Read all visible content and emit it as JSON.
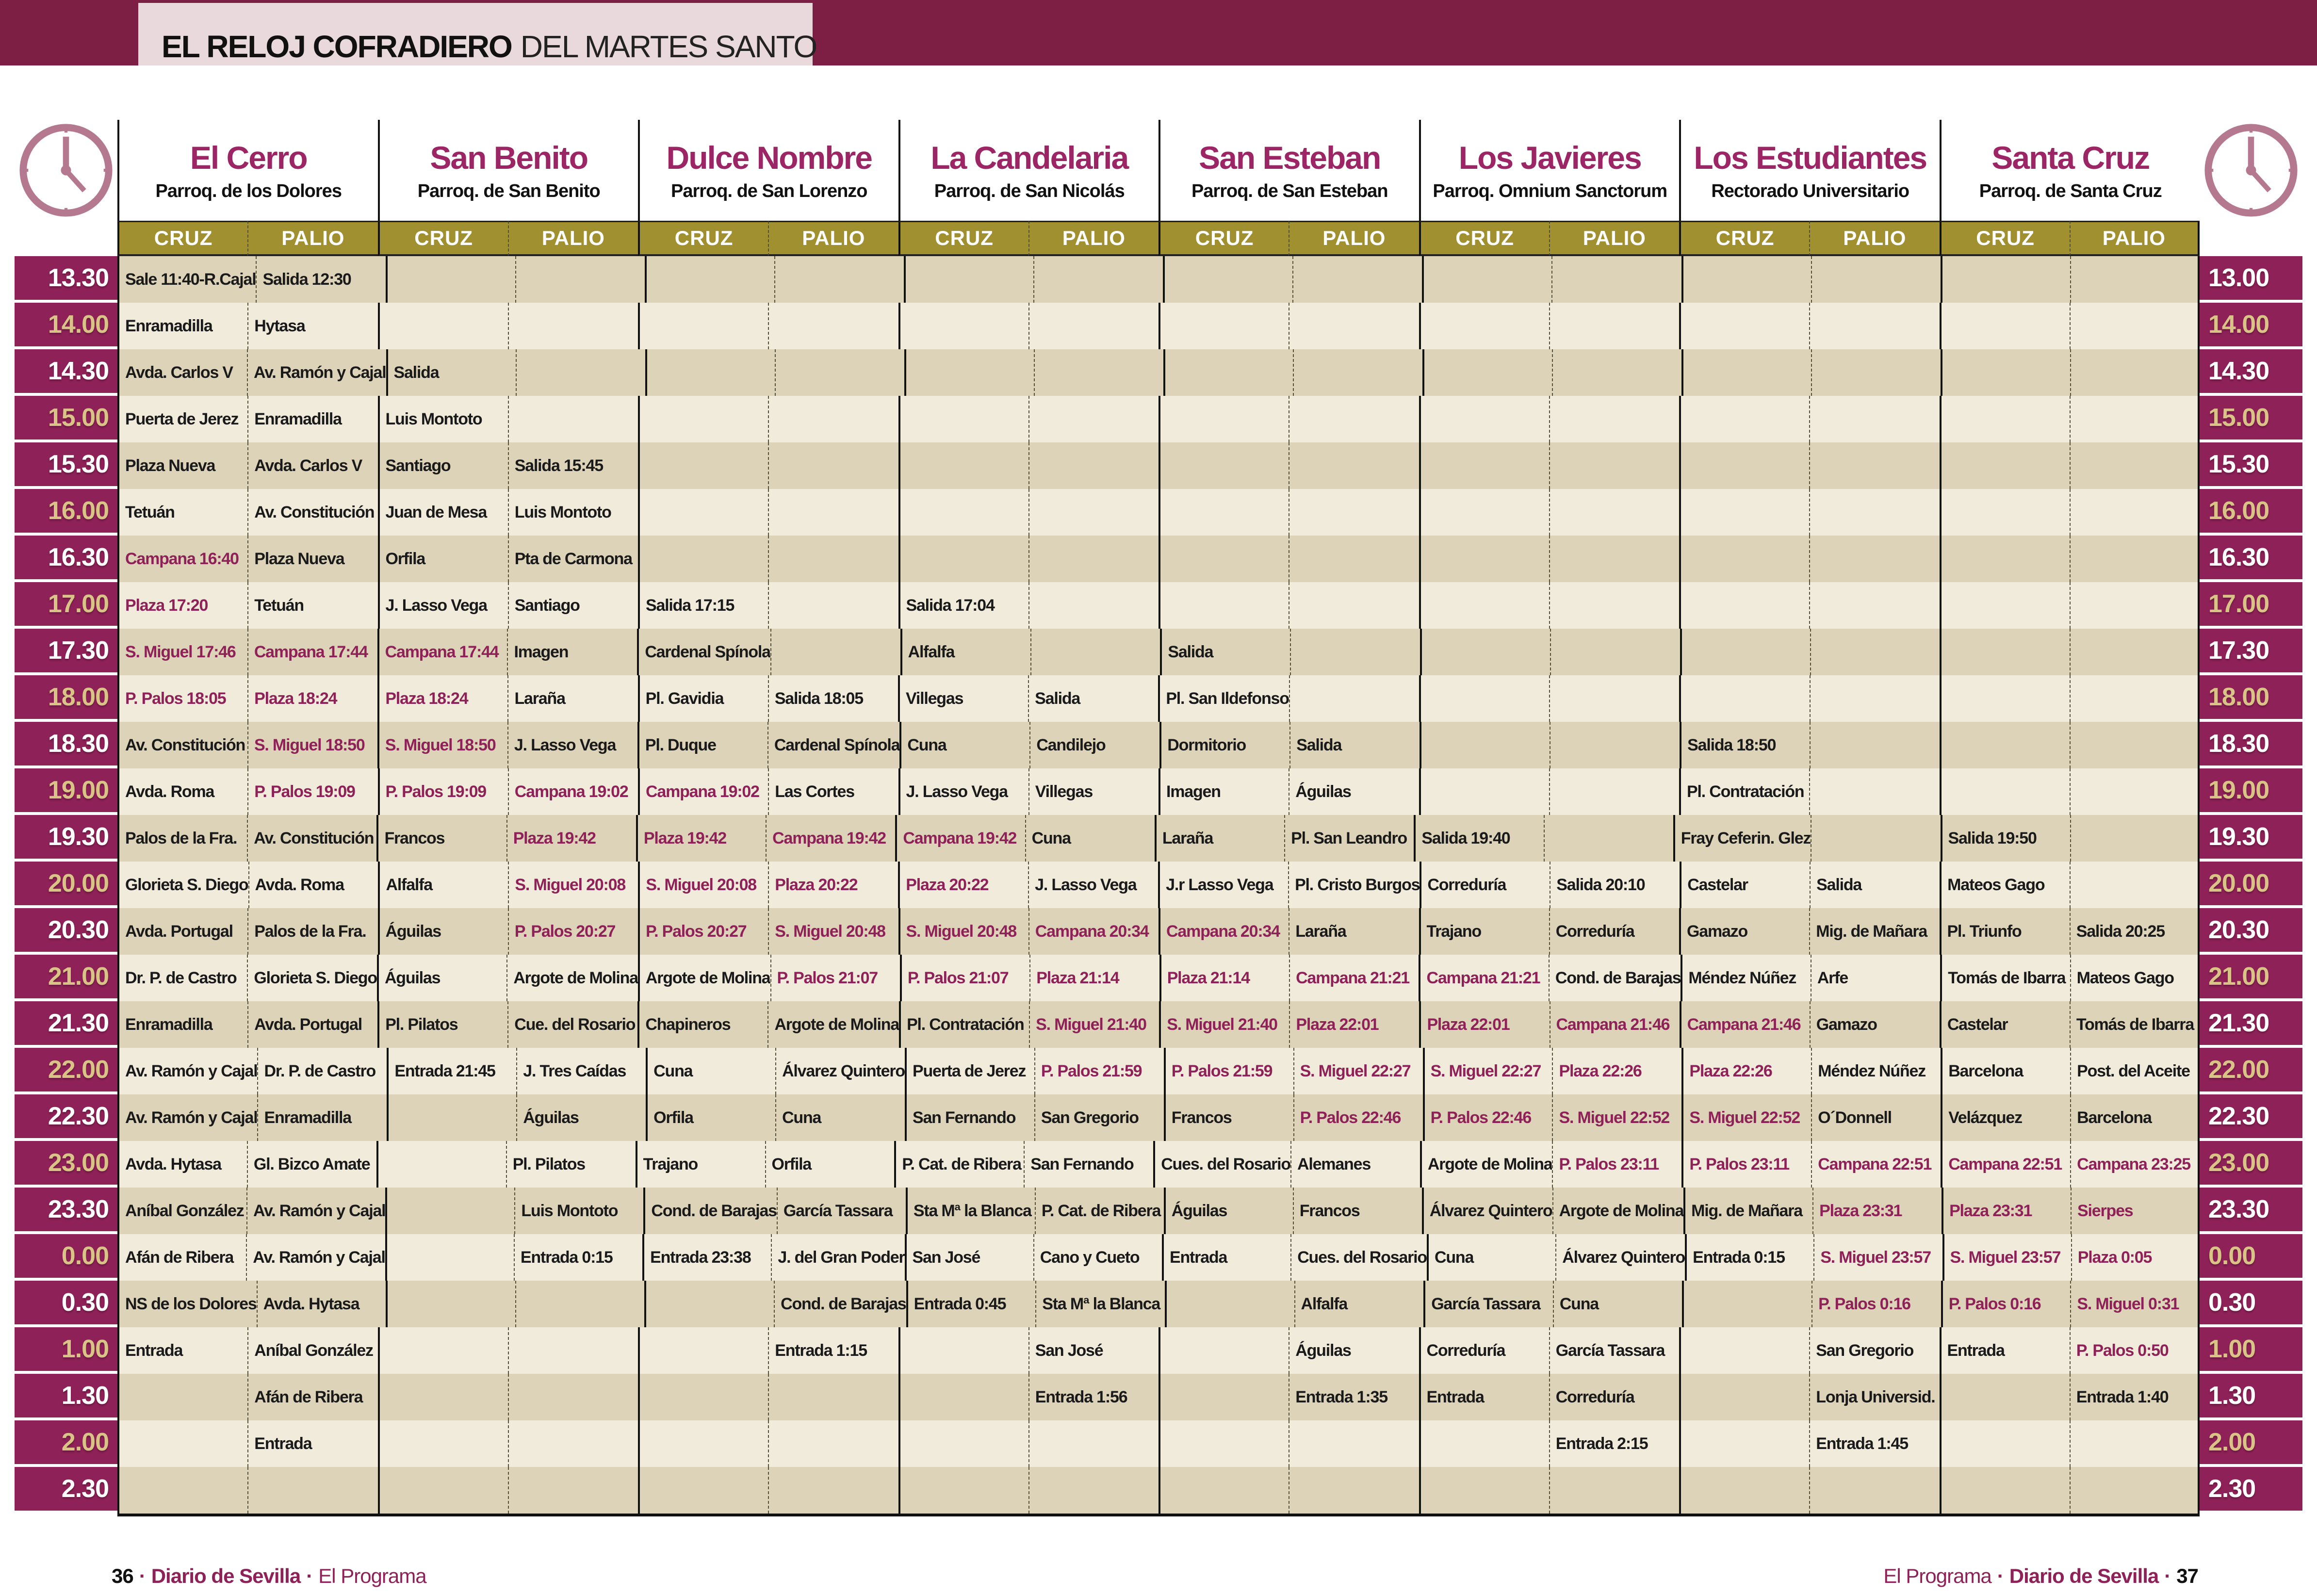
{
  "title": {
    "bold": "EL RELOJ COFRADIERO",
    "regular": "DEL MARTES SANTO"
  },
  "columns": [
    {
      "name": "El Cerro",
      "subtitle": "Parroq. de los Dolores"
    },
    {
      "name": "San Benito",
      "subtitle": "Parroq. de San Benito"
    },
    {
      "name": "Dulce Nombre",
      "subtitle": "Parroq. de San Lorenzo"
    },
    {
      "name": "La Candelaria",
      "subtitle": "Parroq. de San Nicolás"
    },
    {
      "name": "San Esteban",
      "subtitle": "Parroq. de San Esteban"
    },
    {
      "name": "Los Javieres",
      "subtitle": "Parroq. Omnium Sanctorum"
    },
    {
      "name": "Los Estudiantes",
      "subtitle": "Rectorado Universitario"
    },
    {
      "name": "Santa Cruz",
      "subtitle": "Parroq. de Santa Cruz"
    }
  ],
  "subheaders": [
    "CRUZ",
    "PALIO"
  ],
  "highlight_rule": {
    "prefixes": [
      "Campana",
      "Plaza",
      "S. Miguel",
      "P. Palos"
    ],
    "exact": [
      "Sierpes"
    ]
  },
  "rows": [
    {
      "time_left": "13.30",
      "time_right": "13.00",
      "cells": [
        "Sale 11:40-R.Cajal",
        "Salida 12:30",
        "",
        "",
        "",
        "",
        "",
        "",
        "",
        "",
        "",
        "",
        "",
        "",
        "",
        ""
      ]
    },
    {
      "time_left": "14.00",
      "time_right": "14.00",
      "cells": [
        "Enramadilla",
        "Hytasa",
        "",
        "",
        "",
        "",
        "",
        "",
        "",
        "",
        "",
        "",
        "",
        "",
        "",
        ""
      ]
    },
    {
      "time_left": "14.30",
      "time_right": "14.30",
      "cells": [
        "Avda. Carlos V",
        "Av. Ramón y Cajal",
        "Salida",
        "",
        "",
        "",
        "",
        "",
        "",
        "",
        "",
        "",
        "",
        "",
        "",
        ""
      ]
    },
    {
      "time_left": "15.00",
      "time_right": "15.00",
      "cells": [
        "Puerta de Jerez",
        "Enramadilla",
        "Luis Montoto",
        "",
        "",
        "",
        "",
        "",
        "",
        "",
        "",
        "",
        "",
        "",
        "",
        ""
      ]
    },
    {
      "time_left": "15.30",
      "time_right": "15.30",
      "cells": [
        "Plaza Nueva",
        "Avda. Carlos V",
        "Santiago",
        "Salida 15:45",
        "",
        "",
        "",
        "",
        "",
        "",
        "",
        "",
        "",
        "",
        "",
        ""
      ]
    },
    {
      "time_left": "16.00",
      "time_right": "16.00",
      "cells": [
        "Tetuán",
        "Av. Constitución",
        "Juan de Mesa",
        "Luis Montoto",
        "",
        "",
        "",
        "",
        "",
        "",
        "",
        "",
        "",
        "",
        "",
        ""
      ]
    },
    {
      "time_left": "16.30",
      "time_right": "16.30",
      "cells": [
        "Campana 16:40",
        "Plaza Nueva",
        "Orfila",
        "Pta de Carmona",
        "",
        "",
        "",
        "",
        "",
        "",
        "",
        "",
        "",
        "",
        "",
        ""
      ]
    },
    {
      "time_left": "17.00",
      "time_right": "17.00",
      "cells": [
        "Plaza 17:20",
        "Tetuán",
        "J. Lasso Vega",
        "Santiago",
        "Salida 17:15",
        "",
        "Salida 17:04",
        "",
        "",
        "",
        "",
        "",
        "",
        "",
        "",
        ""
      ]
    },
    {
      "time_left": "17.30",
      "time_right": "17.30",
      "cells": [
        "S. Miguel 17:46",
        "Campana 17:44",
        "Campana 17:44",
        "Imagen",
        "Cardenal Spínola",
        "",
        "Alfalfa",
        "",
        "Salida",
        "",
        "",
        "",
        "",
        "",
        "",
        ""
      ]
    },
    {
      "time_left": "18.00",
      "time_right": "18.00",
      "cells": [
        "P. Palos 18:05",
        "Plaza 18:24",
        "Plaza 18:24",
        "Laraña",
        "Pl. Gavidia",
        "Salida 18:05",
        "Villegas",
        "Salida",
        "Pl. San Ildefonso",
        "",
        "",
        "",
        "",
        "",
        "",
        ""
      ]
    },
    {
      "time_left": "18.30",
      "time_right": "18.30",
      "cells": [
        "Av. Constitución",
        "S. Miguel 18:50",
        "S. Miguel 18:50",
        "J. Lasso Vega",
        "Pl. Duque",
        "Cardenal Spínola",
        "Cuna",
        "Candilejo",
        "Dormitorio",
        "Salida",
        "",
        "",
        "Salida 18:50",
        "",
        "",
        ""
      ]
    },
    {
      "time_left": "19.00",
      "time_right": "19.00",
      "cells": [
        "Avda. Roma",
        "P. Palos 19:09",
        "P. Palos 19:09",
        "Campana 19:02",
        "Campana 19:02",
        "Las Cortes",
        "J. Lasso Vega",
        "Villegas",
        "Imagen",
        "Águilas",
        "",
        "",
        "Pl. Contratación",
        "",
        "",
        ""
      ]
    },
    {
      "time_left": "19.30",
      "time_right": "19.30",
      "cells": [
        "Palos de la Fra.",
        "Av. Constitución",
        "Francos",
        "Plaza 19:42",
        "Plaza 19:42",
        "Campana 19:42",
        "Campana 19:42",
        "Cuna",
        "Laraña",
        "Pl. San Leandro",
        "Salida 19:40",
        "",
        "Fray Ceferin. Glez",
        "",
        "Salida 19:50",
        ""
      ]
    },
    {
      "time_left": "20.00",
      "time_right": "20.00",
      "cells": [
        "Glorieta S. Diego",
        "Avda. Roma",
        "Alfalfa",
        "S. Miguel 20:08",
        "S. Miguel 20:08",
        "Plaza 20:22",
        "Plaza 20:22",
        "J. Lasso Vega",
        "J.r Lasso Vega",
        "Pl. Cristo Burgos",
        "Correduría",
        "Salida 20:10",
        "Castelar",
        "Salida",
        "Mateos Gago",
        ""
      ]
    },
    {
      "time_left": "20.30",
      "time_right": "20.30",
      "cells": [
        "Avda. Portugal",
        "Palos de la Fra.",
        "Águilas",
        "P. Palos 20:27",
        "P. Palos 20:27",
        "S. Miguel 20:48",
        "S. Miguel 20:48",
        "Campana 20:34",
        "Campana 20:34",
        "Laraña",
        "Trajano",
        "Correduría",
        "Gamazo",
        "Mig. de Mañara",
        "Pl. Triunfo",
        "Salida 20:25"
      ]
    },
    {
      "time_left": "21.00",
      "time_right": "21.00",
      "cells": [
        "Dr. P. de Castro",
        "Glorieta S. Diego",
        "Águilas",
        "Argote de Molina",
        "Argote de Molina",
        "P. Palos 21:07",
        "P. Palos 21:07",
        "Plaza 21:14",
        "Plaza 21:14",
        "Campana 21:21",
        "Campana 21:21",
        "Cond. de Barajas",
        "Méndez Núñez",
        "Arfe",
        "Tomás de Ibarra",
        "Mateos Gago"
      ]
    },
    {
      "time_left": "21.30",
      "time_right": "21.30",
      "cells": [
        "Enramadilla",
        "Avda. Portugal",
        "Pl. Pilatos",
        "Cue. del Rosario",
        "Chapineros",
        "Argote de Molina",
        "Pl. Contratación",
        "S. Miguel 21:40",
        "S. Miguel 21:40",
        "Plaza 22:01",
        "Plaza 22:01",
        "Campana 21:46",
        "Campana 21:46",
        "Gamazo",
        "Castelar",
        "Tomás de Ibarra"
      ]
    },
    {
      "time_left": "22.00",
      "time_right": "22.00",
      "cells": [
        "Av. Ramón y Cajal",
        "Dr. P. de Castro",
        "Entrada 21:45",
        "J. Tres Caídas",
        "Cuna",
        "Álvarez Quintero",
        "Puerta de Jerez",
        "P. Palos 21:59",
        "P. Palos 21:59",
        "S. Miguel 22:27",
        "S. Miguel 22:27",
        "Plaza 22:26",
        "Plaza 22:26",
        "Méndez Núñez",
        "Barcelona",
        "Post. del Aceite"
      ]
    },
    {
      "time_left": "22.30",
      "time_right": "22.30",
      "cells": [
        "Av. Ramón y Cajal",
        "Enramadilla",
        "",
        "Águilas",
        "Orfila",
        "Cuna",
        "San Fernando",
        "San Gregorio",
        "Francos",
        "P. Palos 22:46",
        "P. Palos 22:46",
        "S. Miguel 22:52",
        "S. Miguel 22:52",
        "O´Donnell",
        "Velázquez",
        "Barcelona"
      ]
    },
    {
      "time_left": "23.00",
      "time_right": "23.00",
      "cells": [
        "Avda. Hytasa",
        "Gl. Bizco Amate",
        "",
        "Pl. Pilatos",
        "Trajano",
        "Orfila",
        "P. Cat. de Ribera",
        "San Fernando",
        "Cues. del Rosario",
        "Alemanes",
        "Argote de Molina",
        "P. Palos 23:11",
        "P. Palos 23:11",
        "Campana 22:51",
        "Campana 22:51",
        "Campana 23:25"
      ]
    },
    {
      "time_left": "23.30",
      "time_right": "23.30",
      "cells": [
        "Aníbal González",
        "Av. Ramón y Cajal",
        "",
        "Luis Montoto",
        "Cond. de Barajas",
        "García Tassara",
        "Sta Mª la Blanca",
        "P. Cat. de Ribera",
        "Águilas",
        "Francos",
        "Álvarez Quintero",
        "Argote de Molina",
        "Mig. de Mañara",
        "Plaza 23:31",
        "Plaza 23:31",
        "Sierpes"
      ]
    },
    {
      "time_left": "0.00",
      "time_right": "0.00",
      "cells": [
        "Afán de Ribera",
        "Av. Ramón y Cajal",
        "",
        "Entrada 0:15",
        "Entrada 23:38",
        "J. del Gran Poder",
        "San José",
        "Cano y Cueto",
        "Entrada",
        "Cues. del Rosario",
        "Cuna",
        "Álvarez Quintero",
        "Entrada 0:15",
        "S. Miguel 23:57",
        "S. Miguel 23:57",
        "Plaza 0:05"
      ]
    },
    {
      "time_left": "0.30",
      "time_right": "0.30",
      "cells": [
        "NS de los Dolores",
        "Avda. Hytasa",
        "",
        "",
        "",
        "Cond. de Barajas",
        "Entrada 0:45",
        "Sta Mª la Blanca",
        "",
        "Alfalfa",
        "García Tassara",
        "Cuna",
        "",
        "P. Palos 0:16",
        "P. Palos 0:16",
        "S. Miguel 0:31"
      ]
    },
    {
      "time_left": "1.00",
      "time_right": "1.00",
      "cells": [
        "Entrada",
        "Aníbal González",
        "",
        "",
        "",
        "Entrada 1:15",
        "",
        "San José",
        "",
        "Águilas",
        "Correduría",
        "García Tassara",
        "",
        "San Gregorio",
        "Entrada",
        "P. Palos 0:50"
      ]
    },
    {
      "time_left": "1.30",
      "time_right": "1.30",
      "cells": [
        "",
        "Afán de Ribera",
        "",
        "",
        "",
        "",
        "",
        "Entrada 1:56",
        "",
        "Entrada 1:35",
        "Entrada",
        "Correduría",
        "",
        "Lonja Universid.",
        "",
        "Entrada 1:40"
      ]
    },
    {
      "time_left": "2.00",
      "time_right": "2.00",
      "cells": [
        "",
        "Entrada",
        "",
        "",
        "",
        "",
        "",
        "",
        "",
        "",
        "",
        "Entrada 2:15",
        "",
        "Entrada 1:45",
        "",
        ""
      ]
    },
    {
      "time_left": "2.30",
      "time_right": "2.30",
      "cells": [
        "",
        "",
        "",
        "",
        "",
        "",
        "",
        "",
        "",
        "",
        "",
        "",
        "",
        "",
        "",
        ""
      ]
    }
  ],
  "footer_left": {
    "page": "36",
    "brand": "Diario de Sevilla",
    "program": "El Programa"
  },
  "footer_right": {
    "program": "El Programa",
    "brand": "Diario de Sevilla",
    "page": "37"
  },
  "icons": {
    "left": "clock-icon",
    "right": "clock-icon"
  },
  "colors": {
    "band": "#7d1f44",
    "time_column": "#8e2157",
    "highlight_text": "#8e2157",
    "column_name": "#9b2565",
    "title_box": "#e9d8dc",
    "subheader_bar": "#a1902f",
    "row_dark": "#ddd3b8",
    "row_light": "#f0ebdb",
    "time_gold": "#d9c386",
    "clock": "#b5798f"
  }
}
